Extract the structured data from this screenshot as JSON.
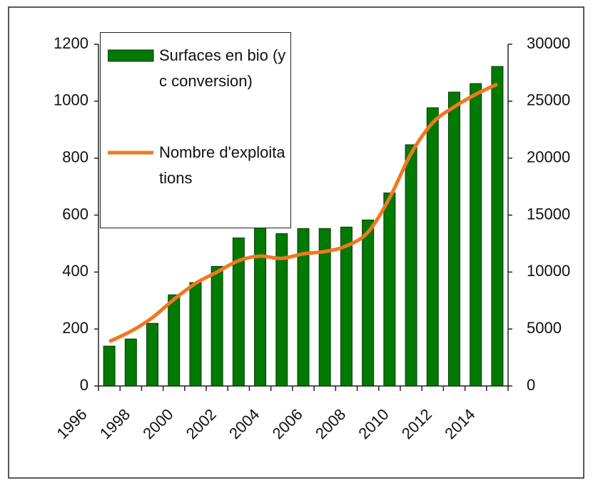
{
  "chart_data": {
    "type": "bar-line",
    "categories": [
      "1996",
      null,
      "1998",
      null,
      "2000",
      null,
      "2002",
      null,
      "2004",
      null,
      "2006",
      null,
      "2008",
      null,
      "2010",
      null,
      "2012",
      null,
      "2014"
    ],
    "series": [
      {
        "name": "Surfaces en bio (yc conversion)",
        "type": "bar",
        "color": "#007a00",
        "values": [
          140,
          165,
          220,
          320,
          363,
          420,
          520,
          570,
          535,
          553,
          553,
          558,
          583,
          678,
          847,
          977,
          1032,
          1062,
          1122
        ]
      },
      {
        "name": "Nombre d'exploitations",
        "type": "line",
        "axis": "y2",
        "color": "#f07820",
        "values": [
          3900,
          4800,
          6000,
          7600,
          9000,
          10000,
          11000,
          11400,
          11200,
          11600,
          11800,
          12300,
          13500,
          16500,
          20400,
          23100,
          24500,
          25600,
          26500
        ]
      }
    ],
    "ylim": [
      0,
      1200
    ],
    "yticks": [
      0,
      200,
      400,
      600,
      800,
      1000,
      1200
    ],
    "y2lim": [
      0,
      30000
    ],
    "y2ticks": [
      0,
      5000,
      10000,
      15000,
      20000,
      25000,
      30000
    ],
    "grid": false
  }
}
